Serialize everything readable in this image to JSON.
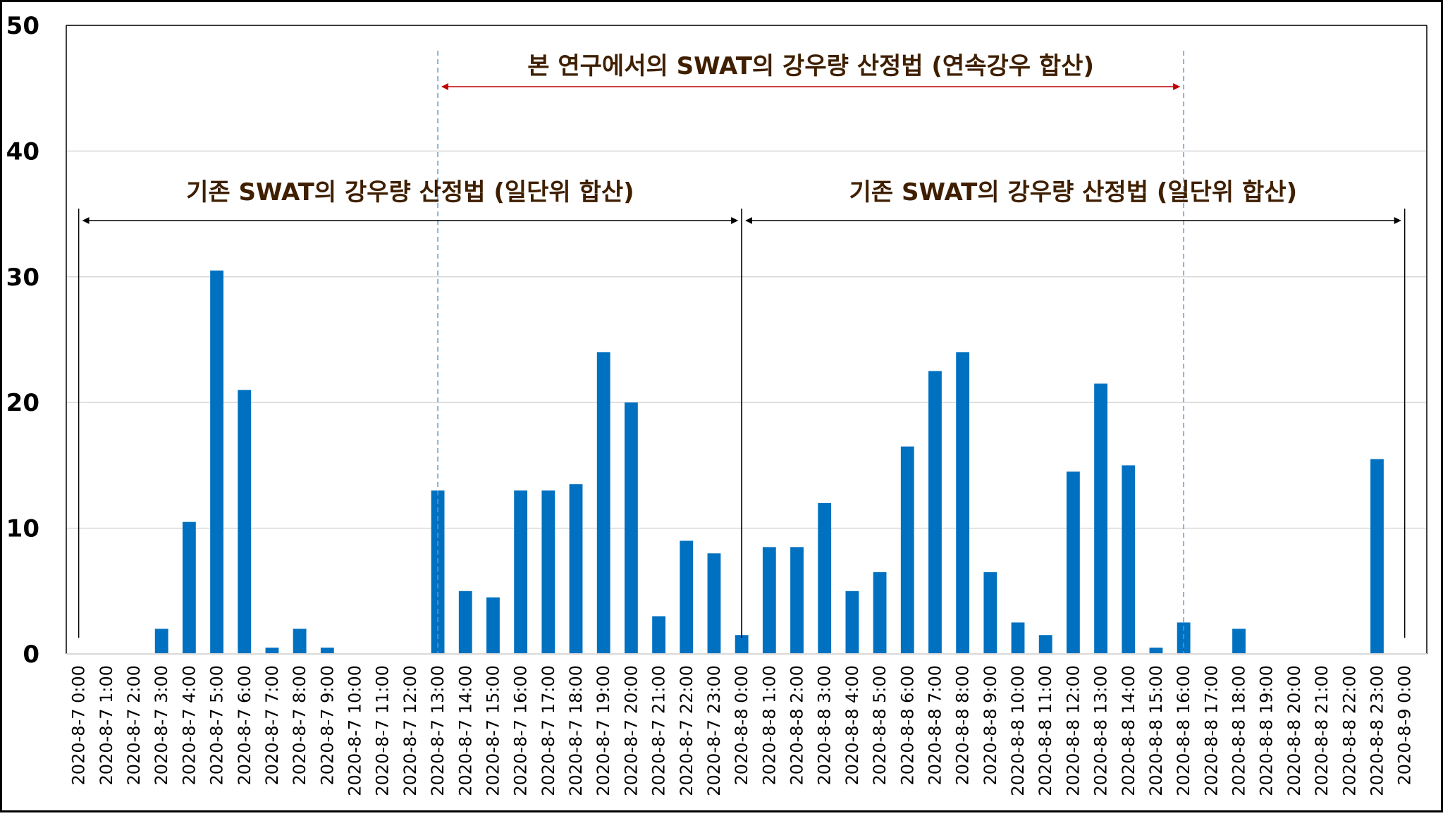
{
  "chart_data": {
    "type": "bar",
    "title": "",
    "xlabel": "",
    "ylabel": "",
    "ylim": [
      0,
      50
    ],
    "yticks": [
      0,
      10,
      20,
      30,
      40,
      50
    ],
    "grid": true,
    "bar_color": "#0070C0",
    "categories": [
      "2020-8-7 0:00",
      "2020-8-7 1:00",
      "2020-8-7 2:00",
      "2020-8-7 3:00",
      "2020-8-7 4:00",
      "2020-8-7 5:00",
      "2020-8-7 6:00",
      "2020-8-7 7:00",
      "2020-8-7 8:00",
      "2020-8-7 9:00",
      "2020-8-7 10:00",
      "2020-8-7 11:00",
      "2020-8-7 12:00",
      "2020-8-7 13:00",
      "2020-8-7 14:00",
      "2020-8-7 15:00",
      "2020-8-7 16:00",
      "2020-8-7 17:00",
      "2020-8-7 18:00",
      "2020-8-7 19:00",
      "2020-8-7 20:00",
      "2020-8-7 21:00",
      "2020-8-7 22:00",
      "2020-8-7 23:00",
      "2020-8-8 0:00",
      "2020-8-8 1:00",
      "2020-8-8 2:00",
      "2020-8-8 3:00",
      "2020-8-8 4:00",
      "2020-8-8 5:00",
      "2020-8-8 6:00",
      "2020-8-8 7:00",
      "2020-8-8 8:00",
      "2020-8-8 9:00",
      "2020-8-8 10:00",
      "2020-8-8 11:00",
      "2020-8-8 12:00",
      "2020-8-8 13:00",
      "2020-8-8 14:00",
      "2020-8-8 15:00",
      "2020-8-8 16:00",
      "2020-8-8 17:00",
      "2020-8-8 18:00",
      "2020-8-8 19:00",
      "2020-8-8 20:00",
      "2020-8-8 21:00",
      "2020-8-8 22:00",
      "2020-8-8 23:00",
      "2020-8-9 0:00"
    ],
    "values": [
      0,
      0,
      0,
      2,
      10.5,
      30.5,
      21,
      0.5,
      2,
      0.5,
      0,
      0,
      0,
      13,
      5,
      4.5,
      13,
      13,
      13.5,
      24,
      20,
      3,
      9,
      8,
      1.5,
      8.5,
      8.5,
      12,
      5,
      6.5,
      16.5,
      22.5,
      24,
      6.5,
      2.5,
      1.5,
      14.5,
      21.5,
      15,
      0.5,
      2.5,
      0,
      2,
      0,
      0,
      0,
      0,
      15.5,
      0
    ],
    "annotations": [
      {
        "id": "continuous",
        "text": "본 연구에서의 SWAT의 강우량 산정법 (연속강우 합산)",
        "from": "2020-8-7 13:00",
        "to": "2020-8-8 16:00",
        "color": "#C00000",
        "text_color": "#3F1F00",
        "boundary_style": "dashed",
        "boundary_color": "#5B9BD5"
      },
      {
        "id": "daily-1",
        "text": "기존 SWAT의 강우량 산정법 (일단위 합산)",
        "from": "2020-8-7 0:00",
        "to": "2020-8-8 0:00",
        "color": "#000000",
        "text_color": "#3F1F00",
        "boundary_style": "solid",
        "boundary_color": "#000000"
      },
      {
        "id": "daily-2",
        "text": "기존 SWAT의 강우량 산정법 (일단위 합산)",
        "from": "2020-8-8 0:00",
        "to": "2020-8-9 0:00",
        "color": "#000000",
        "text_color": "#3F1F00",
        "boundary_style": "solid",
        "boundary_color": "#000000"
      }
    ]
  }
}
